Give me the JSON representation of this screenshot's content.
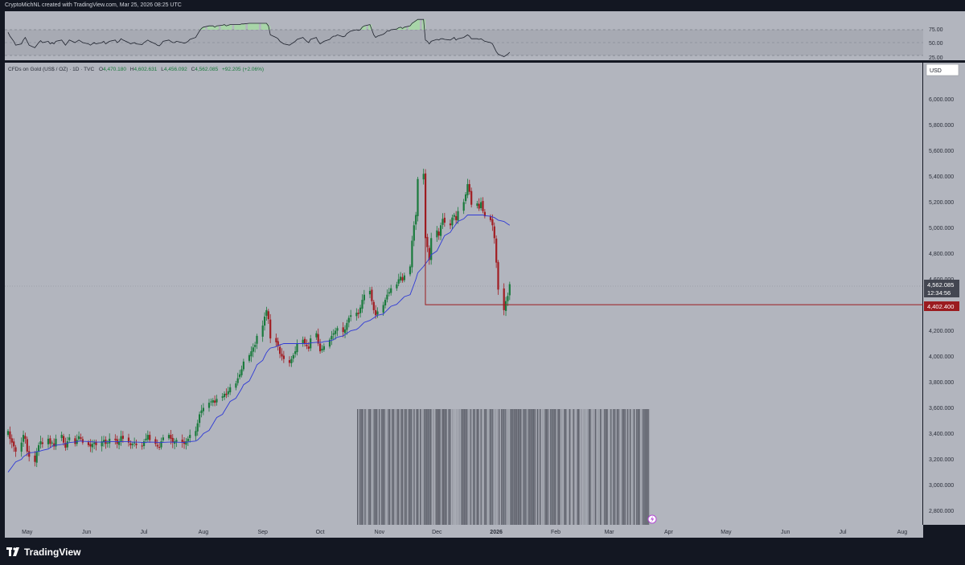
{
  "header": {
    "attribution": "CryptoMichNL created with TradingView.com, Mar 25, 2026 08:25 UTC"
  },
  "legend": {
    "symbol": "CFDs on Gold (US$ / OZ) · 1D · TVC",
    "o_label": "O",
    "o": "4,470.180",
    "h_label": "H",
    "h": "4,602.631",
    "l_label": "L",
    "l": "4,456.092",
    "c_label": "C",
    "c": "4,562.085",
    "change": "+92.205 (+2.06%)"
  },
  "currency_button": "USD",
  "price_tag": {
    "price": "4,562.085",
    "countdown": "12:34:56"
  },
  "level_tag": {
    "price": "4,402.400"
  },
  "brand": {
    "name": "TradingView"
  },
  "colors": {
    "background": "#b2b5be",
    "frame": "#131722",
    "up": "#1a7a3c",
    "down": "#a11d22",
    "ma": "#2f3ad6",
    "level": "#9b1b1f",
    "rsi_fill": "#a8d5a8"
  },
  "chart_data": [
    {
      "type": "candlestick",
      "title": "CFDs on Gold (US$ / OZ) · 1D · TVC",
      "x_tick_labels": [
        "May",
        "Jun",
        "Jul",
        "Aug",
        "Sep",
        "Oct",
        "Nov",
        "Dec",
        "2026",
        "Feb",
        "Mar",
        "Apr",
        "May",
        "Jun",
        "Jul",
        "Aug"
      ],
      "y_tick_labels": [
        "2,800.000",
        "3,000.000",
        "3,200.000",
        "3,400.000",
        "3,600.000",
        "3,800.000",
        "4,000.000",
        "4,200.000",
        "4,400.000",
        "4,600.000",
        "4,800.000",
        "5,000.000",
        "5,200.000",
        "5,400.000",
        "5,600.000",
        "5,800.000",
        "6,000.000"
      ],
      "ylim": [
        2700,
        6300
      ],
      "last_price": 4562.085,
      "horizontal_level": 4402.4,
      "moving_average": true,
      "series": [
        {
          "name": "Close",
          "date_start": "2025-04-21",
          "values": [
            3420,
            3360,
            3330,
            3300,
            3260,
            3330,
            3390,
            3360,
            3260,
            3220,
            3180,
            3260,
            3310,
            3340,
            3320,
            3360,
            3320,
            3330,
            3300,
            3360,
            3390,
            3330,
            3290,
            3340,
            3370,
            3320,
            3350,
            3380,
            3360,
            3330,
            3310,
            3300,
            3320,
            3330,
            3310,
            3340,
            3350,
            3320,
            3330,
            3360,
            3350,
            3320,
            3340,
            3380,
            3360,
            3330,
            3310,
            3320,
            3330,
            3310,
            3300,
            3340,
            3360,
            3390,
            3350,
            3320,
            3300,
            3290,
            3340,
            3370,
            3390,
            3360,
            3330,
            3340,
            3350,
            3330,
            3320,
            3340,
            3360,
            3390,
            3420,
            3480,
            3550,
            3580,
            3600,
            3640,
            3650,
            3660,
            3640,
            3670,
            3690,
            3710,
            3700,
            3730,
            3760,
            3790,
            3830,
            3860,
            3900,
            3960,
            4010,
            4040,
            4070,
            4090,
            4160,
            4240,
            4310,
            4360,
            4290,
            4140,
            4110,
            4080,
            4020,
            4000,
            3980,
            3950,
            3980,
            4010,
            4040,
            4100,
            4130,
            4100,
            4080,
            4060,
            4140,
            4180,
            4100,
            4040,
            4060,
            4080,
            4130,
            4160,
            4180,
            4200,
            4220,
            4190,
            4210,
            4260,
            4300,
            4320,
            4340,
            4330,
            4380,
            4440,
            4480,
            4510,
            4430,
            4360,
            4320,
            4350,
            4400,
            4440,
            4480,
            4500,
            4530,
            4560,
            4600,
            4620,
            4590,
            4630,
            4700,
            4900,
            5020,
            5100,
            5380,
            5420,
            4920,
            4850,
            4750,
            4920,
            4980,
            4940,
            5020,
            5070,
            5040,
            5020,
            5080,
            5100,
            5060,
            5130,
            5200,
            5260,
            5340,
            5280,
            5180,
            5190,
            5150,
            5200,
            5130,
            5090,
            5060,
            5020,
            4920,
            4730,
            4520,
            4360,
            4430,
            4470,
            4562
          ]
        },
        {
          "name": "Moving average",
          "date_start": "2025-04-21",
          "values": [
            3100,
            3120,
            3140,
            3160,
            3180,
            3200,
            3220,
            3230,
            3240,
            3250,
            3255,
            3260,
            3262,
            3265,
            3270,
            3280,
            3290,
            3300,
            3310,
            3310,
            3315,
            3320,
            3322,
            3325,
            3330,
            3335,
            3337,
            3340,
            3342,
            3340,
            3338,
            3336,
            3336,
            3335,
            3334,
            3334,
            3335,
            3336,
            3336,
            3338,
            3338,
            3337,
            3337,
            3337,
            3338,
            3338,
            3336,
            3334,
            3334,
            3334,
            3332,
            3332,
            3332,
            3333,
            3334,
            3333,
            3332,
            3330,
            3330,
            3332,
            3334,
            3334,
            3333,
            3333,
            3333,
            3332,
            3332,
            3333,
            3335,
            3338,
            3342,
            3350,
            3365,
            3380,
            3400,
            3425,
            3450,
            3475,
            3500,
            3525,
            3550,
            3575,
            3600,
            3625,
            3650,
            3675,
            3700,
            3725,
            3750,
            3780,
            3810,
            3840,
            3870,
            3900,
            3935,
            3970,
            4000,
            4030,
            4050,
            4065,
            4075,
            4085,
            4090,
            4095,
            4100,
            4100,
            4100,
            4100,
            4100,
            4100,
            4100,
            4100,
            4100,
            4100,
            4105,
            4110,
            4110,
            4110,
            4110,
            4115,
            4120,
            4125,
            4130,
            4140,
            4150,
            4160,
            4170,
            4180,
            4190,
            4200,
            4210,
            4220,
            4235,
            4250,
            4265,
            4280,
            4290,
            4300,
            4310,
            4320,
            4330,
            4345,
            4360,
            4375,
            4390,
            4405,
            4420,
            4435,
            4450,
            4465,
            4480,
            4520,
            4560,
            4600,
            4650,
            4700,
            4720,
            4740,
            4760,
            4790,
            4820,
            4850,
            4880,
            4910,
            4940,
            4965,
            4990,
            5010,
            5030,
            5050,
            5070,
            5085,
            5100,
            5100,
            5100,
            5100,
            5100,
            5100,
            5100,
            5095,
            5090,
            5085,
            5080,
            5070,
            5060,
            5050,
            5040,
            5030,
            5020
          ]
        }
      ]
    },
    {
      "type": "line",
      "title": "",
      "y_tick_labels": [
        "25.00",
        "50.00",
        "75.00"
      ],
      "ylim": [
        20,
        90
      ],
      "overbought": 70,
      "oversold": 30,
      "series": [
        {
          "name": "",
          "values": [
            66,
            60,
            56,
            52,
            46,
            48,
            54,
            58,
            52,
            46,
            42,
            46,
            50,
            53,
            50,
            52,
            48,
            50,
            48,
            52,
            54,
            50,
            46,
            50,
            54,
            50,
            52,
            54,
            52,
            50,
            48,
            46,
            48,
            50,
            48,
            50,
            52,
            48,
            50,
            52,
            54,
            50,
            52,
            56,
            54,
            50,
            48,
            49,
            50,
            48,
            47,
            50,
            52,
            54,
            52,
            48,
            46,
            45,
            48,
            52,
            54,
            52,
            50,
            50,
            52,
            50,
            49,
            50,
            52,
            55,
            58,
            63,
            68,
            72,
            74,
            76,
            76,
            76,
            74,
            76,
            77,
            78,
            76,
            77,
            78,
            78,
            78,
            78,
            79,
            79,
            80,
            80,
            80,
            80,
            80,
            80,
            80,
            80,
            76,
            62,
            58,
            56,
            52,
            50,
            48,
            46,
            48,
            50,
            52,
            55,
            58,
            55,
            52,
            50,
            55,
            58,
            52,
            48,
            50,
            52,
            55,
            58,
            60,
            60,
            62,
            59,
            60,
            64,
            66,
            68,
            70,
            69,
            70,
            74,
            76,
            78,
            70,
            62,
            58,
            60,
            63,
            65,
            68,
            68,
            70,
            71,
            73,
            74,
            72,
            74,
            76,
            80,
            82,
            84,
            86,
            86,
            54,
            52,
            48,
            52,
            55,
            54,
            56,
            56,
            55,
            54,
            56,
            58,
            54,
            56,
            58,
            60,
            62,
            60,
            56,
            56,
            55,
            56,
            54,
            52,
            50,
            48,
            42,
            36,
            32,
            28,
            30,
            32,
            35
          ]
        }
      ]
    },
    {
      "type": "bar",
      "title": "",
      "series": [
        {
          "name": "",
          "values": []
        }
      ]
    }
  ]
}
